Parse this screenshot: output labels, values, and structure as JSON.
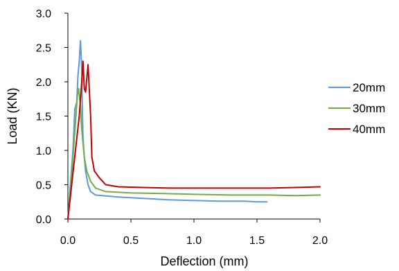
{
  "chart_data": {
    "type": "line",
    "title": "",
    "xlabel": "Deflection (mm)",
    "ylabel": "Load (KN)",
    "xlim": [
      0,
      2.0
    ],
    "ylim": [
      0,
      3.0
    ],
    "x_ticks": [
      "0.0",
      "0.5",
      "1.0",
      "1.5",
      "2.0"
    ],
    "y_ticks": [
      "0.0",
      "0.5",
      "1.0",
      "1.5",
      "2.0",
      "2.5",
      "3.0"
    ],
    "grid": false,
    "legend_position": "right",
    "series": [
      {
        "name": "20mm",
        "color": "#5B9BD5",
        "points": [
          [
            0,
            0
          ],
          [
            0.02,
            0.5
          ],
          [
            0.04,
            1.0
          ],
          [
            0.055,
            1.6
          ],
          [
            0.07,
            1.7
          ],
          [
            0.08,
            2.1
          ],
          [
            0.09,
            2.3
          ],
          [
            0.1,
            2.6
          ],
          [
            0.11,
            2.2
          ],
          [
            0.115,
            1.6
          ],
          [
            0.12,
            1.2
          ],
          [
            0.13,
            0.9
          ],
          [
            0.14,
            0.7
          ],
          [
            0.16,
            0.5
          ],
          [
            0.18,
            0.4
          ],
          [
            0.22,
            0.35
          ],
          [
            0.4,
            0.32
          ],
          [
            0.6,
            0.3
          ],
          [
            0.8,
            0.28
          ],
          [
            1.0,
            0.27
          ],
          [
            1.2,
            0.26
          ],
          [
            1.4,
            0.26
          ],
          [
            1.5,
            0.25
          ],
          [
            1.58,
            0.25
          ]
        ]
      },
      {
        "name": "30mm",
        "color": "#70AD47",
        "points": [
          [
            0,
            0
          ],
          [
            0.02,
            0.4
          ],
          [
            0.04,
            0.9
          ],
          [
            0.06,
            1.4
          ],
          [
            0.075,
            1.8
          ],
          [
            0.085,
            1.9
          ],
          [
            0.1,
            1.65
          ],
          [
            0.11,
            1.3
          ],
          [
            0.13,
            0.9
          ],
          [
            0.15,
            0.7
          ],
          [
            0.18,
            0.55
          ],
          [
            0.22,
            0.45
          ],
          [
            0.3,
            0.4
          ],
          [
            0.5,
            0.38
          ],
          [
            0.8,
            0.37
          ],
          [
            1.0,
            0.36
          ],
          [
            1.3,
            0.35
          ],
          [
            1.6,
            0.35
          ],
          [
            1.8,
            0.34
          ],
          [
            2.0,
            0.35
          ]
        ]
      },
      {
        "name": "40mm",
        "color": "#C00000",
        "points": [
          [
            0,
            0
          ],
          [
            0.03,
            0.5
          ],
          [
            0.06,
            1.0
          ],
          [
            0.09,
            1.5
          ],
          [
            0.11,
            2.0
          ],
          [
            0.12,
            2.3
          ],
          [
            0.13,
            1.9
          ],
          [
            0.14,
            1.85
          ],
          [
            0.16,
            2.25
          ],
          [
            0.18,
            1.5
          ],
          [
            0.19,
            0.9
          ],
          [
            0.21,
            0.7
          ],
          [
            0.25,
            0.6
          ],
          [
            0.3,
            0.5
          ],
          [
            0.4,
            0.47
          ],
          [
            0.6,
            0.46
          ],
          [
            0.8,
            0.45
          ],
          [
            1.0,
            0.45
          ],
          [
            1.2,
            0.45
          ],
          [
            1.4,
            0.45
          ],
          [
            1.6,
            0.45
          ],
          [
            1.8,
            0.46
          ],
          [
            2.0,
            0.47
          ]
        ]
      }
    ]
  }
}
